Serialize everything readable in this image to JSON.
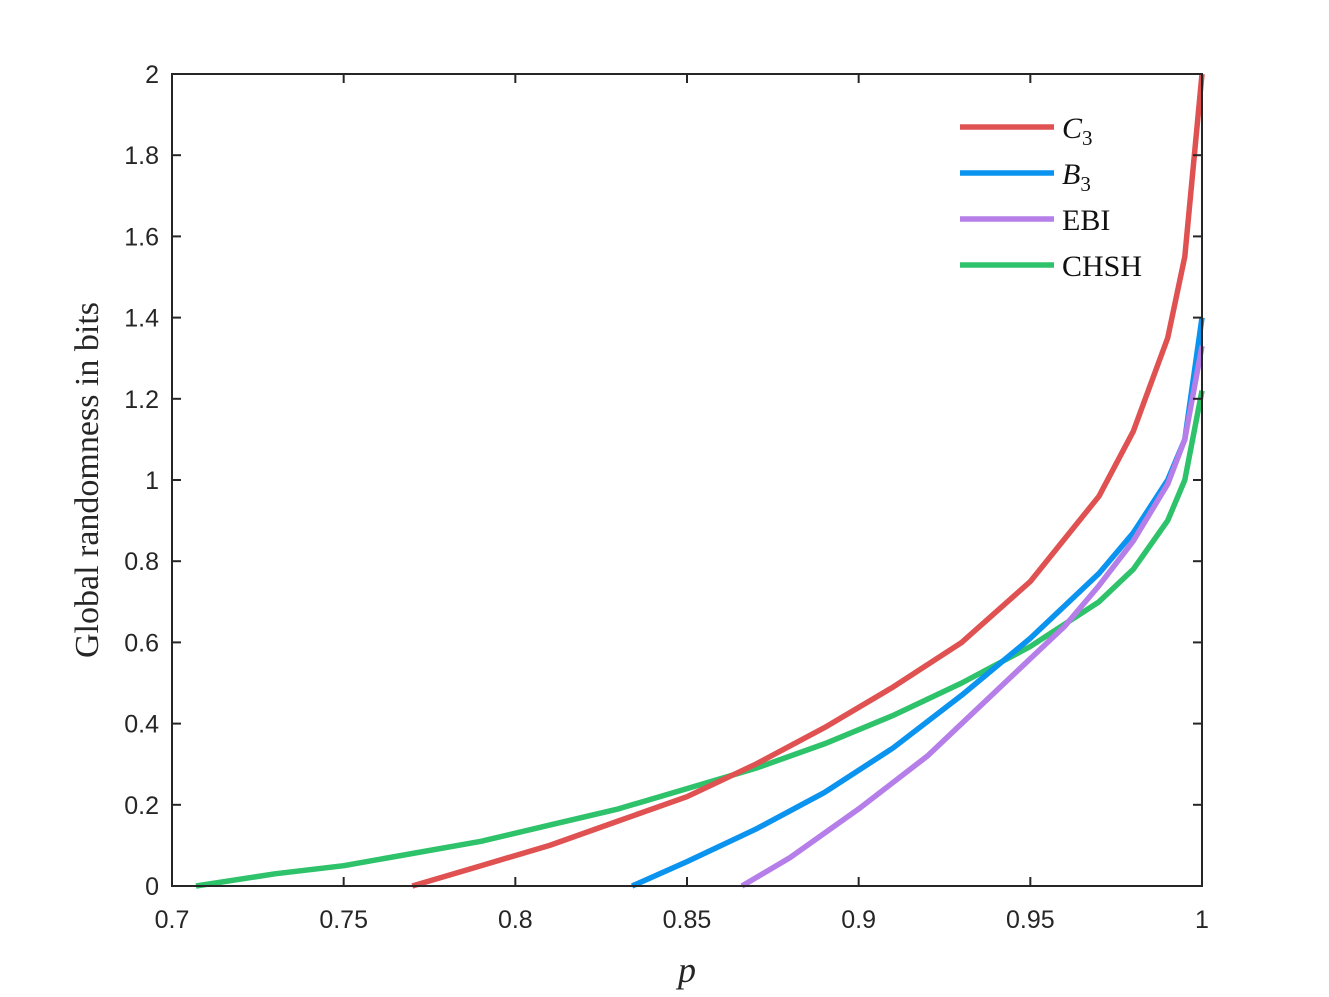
{
  "chart_data": {
    "type": "line",
    "title": "",
    "xlabel": "p",
    "ylabel": "Global randomness in bits",
    "xlim": [
      0.7,
      1
    ],
    "ylim": [
      0,
      2
    ],
    "xticks": [
      0.7,
      0.75,
      0.8,
      0.85,
      0.9,
      0.95,
      1
    ],
    "xtick_labels": [
      "0.7",
      "0.75",
      "0.8",
      "0.85",
      "0.9",
      "0.95",
      "1"
    ],
    "yticks": [
      0,
      0.2,
      0.4,
      0.6,
      0.8,
      1,
      1.2,
      1.4,
      1.6,
      1.8,
      2
    ],
    "ytick_labels": [
      "0",
      "0.2",
      "0.4",
      "0.6",
      "0.8",
      "1",
      "1.2",
      "1.4",
      "1.6",
      "1.8",
      "2"
    ],
    "grid": false,
    "box": true,
    "legend_position": "top-right",
    "series": [
      {
        "name": "C",
        "name_subscript": "3",
        "color": "#e05252",
        "x": [
          0.77,
          0.79,
          0.81,
          0.83,
          0.85,
          0.87,
          0.89,
          0.91,
          0.93,
          0.95,
          0.97,
          0.98,
          0.99,
          0.995,
          1.0
        ],
        "y": [
          0.0,
          0.05,
          0.1,
          0.16,
          0.22,
          0.3,
          0.39,
          0.49,
          0.6,
          0.75,
          0.96,
          1.12,
          1.35,
          1.55,
          2.0
        ]
      },
      {
        "name": "B",
        "name_subscript": "3",
        "color": "#0b93f0",
        "x": [
          0.834,
          0.85,
          0.87,
          0.89,
          0.91,
          0.93,
          0.95,
          0.97,
          0.98,
          0.99,
          0.995,
          1.0
        ],
        "y": [
          0.0,
          0.06,
          0.14,
          0.23,
          0.34,
          0.47,
          0.61,
          0.77,
          0.87,
          1.0,
          1.1,
          1.4
        ]
      },
      {
        "name": "EBI",
        "color": "#b57ee8",
        "x": [
          0.866,
          0.88,
          0.9,
          0.92,
          0.94,
          0.96,
          0.97,
          0.98,
          0.99,
          0.995,
          1.0
        ],
        "y": [
          0.0,
          0.07,
          0.19,
          0.32,
          0.48,
          0.64,
          0.74,
          0.85,
          0.99,
          1.1,
          1.33
        ]
      },
      {
        "name": "CHSH",
        "color": "#2ec26a",
        "x": [
          0.707,
          0.73,
          0.75,
          0.77,
          0.79,
          0.81,
          0.83,
          0.85,
          0.87,
          0.89,
          0.91,
          0.93,
          0.95,
          0.97,
          0.98,
          0.99,
          0.995,
          1.0
        ],
        "y": [
          0.0,
          0.03,
          0.05,
          0.08,
          0.11,
          0.15,
          0.19,
          0.24,
          0.29,
          0.35,
          0.42,
          0.5,
          0.59,
          0.7,
          0.78,
          0.9,
          1.0,
          1.22
        ]
      }
    ]
  }
}
